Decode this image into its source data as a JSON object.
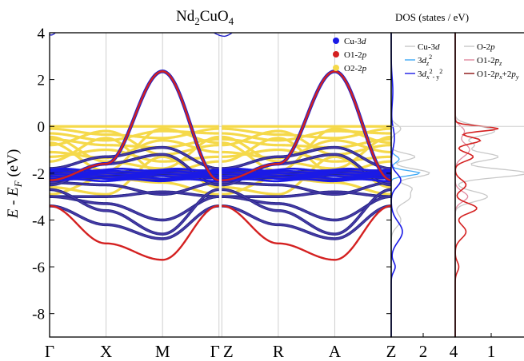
{
  "figure": {
    "title_main": "Nd",
    "title_sub1": "2",
    "title_mid": "CuO",
    "title_sub2": "4",
    "dos_title": "DOS (states / eV)"
  },
  "chart_data": [
    {
      "type": "line",
      "name": "band-structure",
      "title": "Nd2CuO4",
      "ylabel": "E - E_F (eV)",
      "ylim": [
        -9,
        4
      ],
      "y_ticks": [
        -8,
        -6,
        -4,
        -2,
        0,
        2,
        4
      ],
      "y_tick_labels": [
        "-8",
        "-6",
        "-4",
        "-2",
        "0",
        "2",
        "4"
      ],
      "k_points": [
        {
          "label": "Γ",
          "k": 0
        },
        {
          "label": "X",
          "k": 1
        },
        {
          "label": "M",
          "k": 2
        },
        {
          "label": "Γ",
          "k": 3
        },
        {
          "label": "Z",
          "k": 3.05
        },
        {
          "label": "R",
          "k": 4.05
        },
        {
          "label": "A",
          "k": 5.05
        },
        {
          "label": "Z",
          "k": 6.05
        }
      ],
      "legend": [
        {
          "name": "Cu-3d",
          "color": "#1a1ae6"
        },
        {
          "name": "O1-2p",
          "color": "#d42020"
        },
        {
          "name": "O2-2p",
          "color": "#f5d94a"
        }
      ],
      "bands": {
        "cu3d_flat": [
          -1.9,
          -2.0,
          -2.1,
          -2.2,
          -2.3,
          -2.4,
          -1.8
        ],
        "upper_band": {
          "k": [
            0,
            1,
            2,
            3,
            3.05,
            4.05,
            5.05,
            6.05
          ],
          "y": [
            -2.3,
            -0.9,
            2.35,
            -2.3,
            -2.3,
            -0.9,
            2.35,
            -2.3
          ]
        },
        "lower_band": {
          "k": [
            0,
            1,
            2,
            3,
            3.05,
            4.05,
            5.05,
            6.05
          ],
          "y": [
            -3.4,
            -5.0,
            -5.7,
            -3.4,
            -3.4,
            -5.0,
            -5.7,
            -3.4
          ]
        }
      },
      "grid": "vertical at k-points",
      "legend_position": "top-right"
    },
    {
      "type": "line",
      "name": "dos-cu",
      "xlim": [
        0,
        4
      ],
      "x_ticks": [
        2,
        4
      ],
      "x_tick_labels": [
        "2",
        "4"
      ],
      "legend": [
        {
          "name": "Cu-3d",
          "sub": "",
          "sup": "",
          "color": "#c8c8c8"
        },
        {
          "name": "3d",
          "sub": "z",
          "sup": "2",
          "color": "#3fa9f5"
        },
        {
          "name": "3d",
          "sub": "x",
          "sup": "2",
          "mid": "- y",
          "color": "#1a1ae6"
        }
      ]
    },
    {
      "type": "line",
      "name": "dos-o",
      "x_ticks": [
        1
      ],
      "x_tick_labels": [
        "1"
      ],
      "legend": [
        {
          "name": "O-2p",
          "color": "#c8c8c8"
        },
        {
          "name": "O1-2p",
          "sub": "z",
          "color": "#e08aa0"
        },
        {
          "name": "O1-2p",
          "sub": "x",
          "mid": "+2p",
          "sub2": "y",
          "color": "#d42020"
        }
      ]
    }
  ]
}
